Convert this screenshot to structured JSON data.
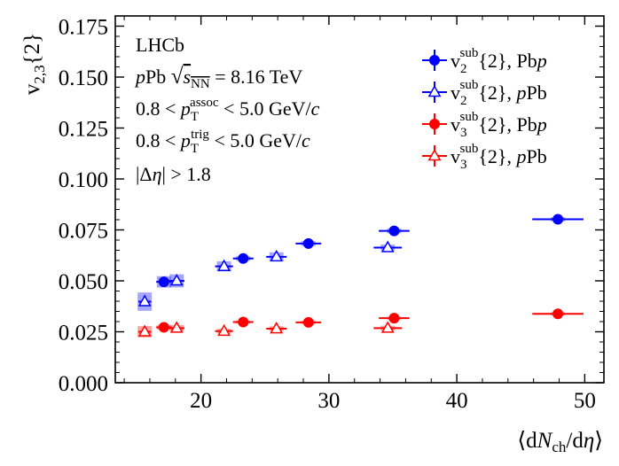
{
  "chart_data": {
    "type": "scatter",
    "title": "",
    "xlabel": "⟨dN_ch/dη⟩",
    "ylabel": "v_{2,3}{2}",
    "xlim": [
      13.3,
      51.5
    ],
    "ylim": [
      0.0,
      0.18
    ],
    "x_ticks": [
      20,
      30,
      40,
      50
    ],
    "y_ticks": [
      0.0,
      0.025,
      0.05,
      0.075,
      0.1,
      0.125,
      0.15,
      0.175
    ],
    "y_tick_labels": [
      "0.000",
      "0.025",
      "0.050",
      "0.075",
      "0.100",
      "0.125",
      "0.150",
      "0.175"
    ],
    "x_tick_labels": [
      "20",
      "30",
      "40",
      "50"
    ],
    "annotations": {
      "experiment": "LHCb",
      "system": "pPb √sNN = 8.16 TeV",
      "assoc_cut": "0.8 < p_T^assoc < 5.0 GeV/c",
      "trig_cut": "0.8 < p_T^trig < 5.0 GeV/c",
      "eta_gap": "|Δη| > 1.8"
    },
    "series": [
      {
        "name": "v2sub{2}, Pbp",
        "label_main": "v",
        "label_sub": "2",
        "label_sup": "sub",
        "label_rest": "{2}, Pb",
        "label_italic": "p",
        "color": "#0000ff",
        "marker": "circle-filled",
        "points": [
          {
            "x": 17.1,
            "y": 0.0495,
            "xerr": 0.6,
            "syst": 0.0028
          },
          {
            "x": 23.3,
            "y": 0.061,
            "xerr": 0.8,
            "syst": 0.0012
          },
          {
            "x": 28.4,
            "y": 0.0683,
            "xerr": 1.0,
            "syst": 0.0012
          },
          {
            "x": 35.1,
            "y": 0.0745,
            "xerr": 1.2,
            "syst": 0.0012
          },
          {
            "x": 47.9,
            "y": 0.0802,
            "xerr": 2.0,
            "syst": 0.001
          }
        ]
      },
      {
        "name": "v2sub{2}, pPb",
        "label_main": "v",
        "label_sub": "2",
        "label_sup": "sub",
        "label_rest": "{2}, ",
        "label_italic": "p",
        "label_tail": "Pb",
        "color": "#0000ff",
        "marker": "triangle-open",
        "points": [
          {
            "x": 15.6,
            "y": 0.0398,
            "xerr": 0.5,
            "syst": 0.0045
          },
          {
            "x": 18.1,
            "y": 0.05,
            "xerr": 0.6,
            "syst": 0.0032
          },
          {
            "x": 21.8,
            "y": 0.0571,
            "xerr": 0.7,
            "syst": 0.0025
          },
          {
            "x": 25.9,
            "y": 0.0618,
            "xerr": 0.8,
            "syst": 0.0022
          },
          {
            "x": 34.6,
            "y": 0.0663,
            "xerr": 1.1,
            "syst": 0.0015
          }
        ]
      },
      {
        "name": "v3sub{2}, Pbp",
        "label_main": "v",
        "label_sub": "3",
        "label_sup": "sub",
        "label_rest": "{2}, Pb",
        "label_italic": "p",
        "color": "#ff0000",
        "marker": "circle-filled",
        "points": [
          {
            "x": 17.1,
            "y": 0.0272,
            "xerr": 0.6,
            "syst": 0.0012
          },
          {
            "x": 23.3,
            "y": 0.0298,
            "xerr": 0.8,
            "syst": 0.0008
          },
          {
            "x": 28.4,
            "y": 0.0296,
            "xerr": 1.0,
            "syst": 0.0008
          },
          {
            "x": 35.1,
            "y": 0.0317,
            "xerr": 1.2,
            "syst": 0.0008
          },
          {
            "x": 47.9,
            "y": 0.0338,
            "xerr": 2.0,
            "syst": 0.0008
          }
        ]
      },
      {
        "name": "v3sub{2}, pPb",
        "label_main": "v",
        "label_sub": "3",
        "label_sup": "sub",
        "label_rest": "{2}, ",
        "label_italic": "p",
        "label_tail": "Pb",
        "color": "#ff0000",
        "marker": "triangle-open",
        "points": [
          {
            "x": 15.6,
            "y": 0.025,
            "xerr": 0.5,
            "syst": 0.0028
          },
          {
            "x": 18.1,
            "y": 0.0268,
            "xerr": 0.6,
            "syst": 0.0015
          },
          {
            "x": 21.8,
            "y": 0.0253,
            "xerr": 0.7,
            "syst": 0.0012
          },
          {
            "x": 25.9,
            "y": 0.0265,
            "xerr": 0.8,
            "syst": 0.0012
          },
          {
            "x": 34.6,
            "y": 0.0268,
            "xerr": 1.1,
            "syst": 0.0012
          }
        ]
      }
    ],
    "legend_position": "top-right"
  }
}
